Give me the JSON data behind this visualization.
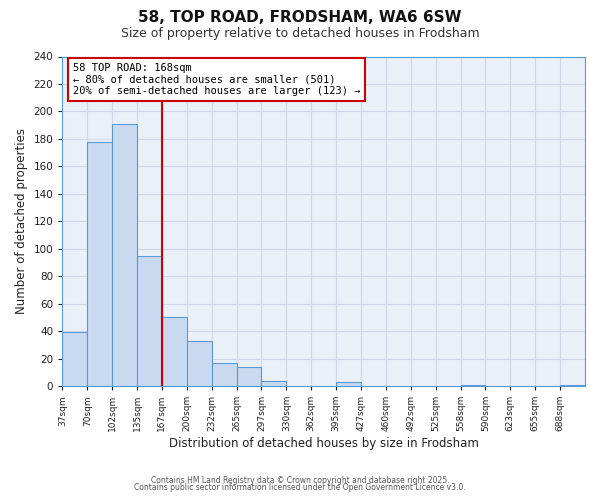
{
  "title": "58, TOP ROAD, FRODSHAM, WA6 6SW",
  "subtitle": "Size of property relative to detached houses in Frodsham",
  "xlabel": "Distribution of detached houses by size in Frodsham",
  "ylabel": "Number of detached properties",
  "bin_labels": [
    "37sqm",
    "70sqm",
    "102sqm",
    "135sqm",
    "167sqm",
    "200sqm",
    "232sqm",
    "265sqm",
    "297sqm",
    "330sqm",
    "362sqm",
    "395sqm",
    "427sqm",
    "460sqm",
    "492sqm",
    "525sqm",
    "558sqm",
    "590sqm",
    "623sqm",
    "655sqm",
    "688sqm"
  ],
  "bar_heights": [
    39,
    178,
    191,
    95,
    50,
    33,
    17,
    14,
    4,
    0,
    0,
    3,
    0,
    0,
    0,
    0,
    1,
    0,
    0,
    0,
    1
  ],
  "bar_color": "#c9d9f0",
  "bar_edge_color": "#5b9bd5",
  "grid_color": "#d0d8e8",
  "plot_bg_color": "#eaf0f8",
  "fig_bg_color": "#ffffff",
  "vline_color": "#cc0000",
  "annotation_line1": "58 TOP ROAD: 168sqm",
  "annotation_line2": "← 80% of detached houses are smaller (501)",
  "annotation_line3": "20% of semi-detached houses are larger (123) →",
  "annotation_box_color": "#ffffff",
  "annotation_box_edge": "#cc0000",
  "ylim": [
    0,
    240
  ],
  "yticks": [
    0,
    20,
    40,
    60,
    80,
    100,
    120,
    140,
    160,
    180,
    200,
    220,
    240
  ],
  "footnote1": "Contains HM Land Registry data © Crown copyright and database right 2025.",
  "footnote2": "Contains public sector information licensed under the Open Government Licence v3.0."
}
